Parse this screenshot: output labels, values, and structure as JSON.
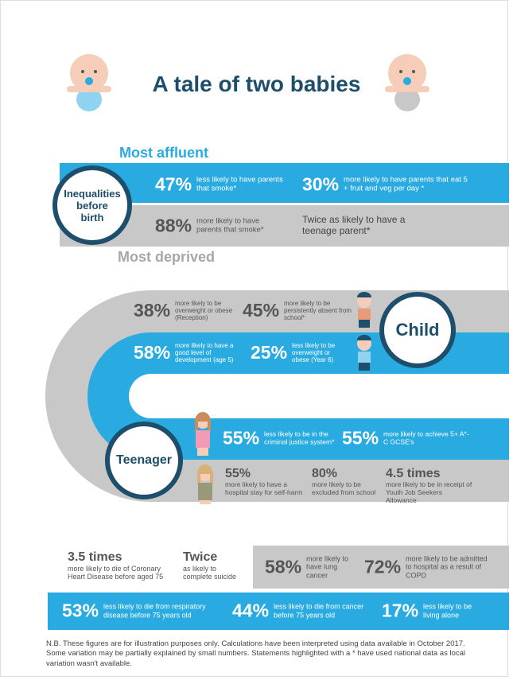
{
  "title": "A tale of two babies",
  "most_affluent": "Most affluent",
  "most_deprived": "Most deprived",
  "birth": {
    "label": "Inequalities before birth",
    "affluent": [
      {
        "figure": "47%",
        "text": "less likely to have parents that smoke*"
      },
      {
        "figure": "30%",
        "text": "more likely to have parents that eat 5 + fruit and veg per day *"
      }
    ],
    "deprived": [
      {
        "figure": "88%",
        "text": "more likely to have parents that smoke*"
      },
      {
        "text": "Twice as likely to have a teenage parent*"
      }
    ]
  },
  "child": {
    "label": "Child",
    "deprived": [
      {
        "figure": "38%",
        "text": "more likely to be overweight or obese (Reception)"
      },
      {
        "figure": "45%",
        "text": "more likely to be persistently absent from school*"
      }
    ],
    "affluent": [
      {
        "figure": "58%",
        "text": "more likely to have a good level of development (age 5)"
      },
      {
        "figure": "25%",
        "text": "less likely to be overweight or obese (Year 6)"
      }
    ]
  },
  "teenager": {
    "label": "Teenager",
    "affluent": [
      {
        "figure": "55%",
        "text": "less likely to be in the criminal justice system*"
      },
      {
        "figure": "55%",
        "text": "more likely to achieve 5+ A*- C GCSE's"
      }
    ],
    "deprived": [
      {
        "figure": "55%",
        "text": "more likely to have a hospital stay for self-harm"
      },
      {
        "figure": "80%",
        "text": "more likely to be excluded from school"
      },
      {
        "figure": "4.5 times",
        "text": "more likely to be in receipt of Youth Job Seekers Allowance"
      }
    ]
  },
  "adult": {
    "deprived": [
      {
        "figure": "3.5 times",
        "text": "more likely to die of Coronary Heart Disease before aged 75"
      },
      {
        "figure": "Twice",
        "text": "as likely to complete suicide"
      },
      {
        "figure": "58%",
        "text": "more likely to have lung cancer"
      },
      {
        "figure": "72%",
        "text": "more likely to be admitted to hospital as a result of COPD"
      }
    ],
    "affluent": [
      {
        "figure": "53%",
        "text": "less likely to die from respiratory disease before 75 years old"
      },
      {
        "figure": "44%",
        "text": "less likely to die from cancer before 75 years old"
      },
      {
        "figure": "17%",
        "text": "less likely to be living alone"
      }
    ]
  },
  "note": "N.B. These figures are for illustration purposes only. Calculations have been interpreted using data available in October 2017. Some variation may be partially explained by small numbers. Statements highlighted with a * have used national data as local variation wasn't available."
}
